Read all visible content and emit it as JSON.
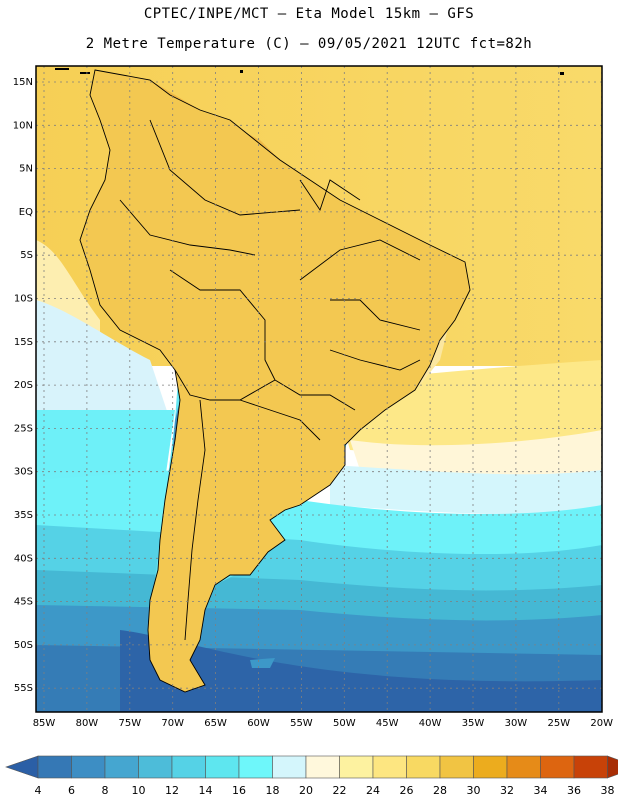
{
  "header": {
    "line1": "CPTEC/INPE/MCT –  Eta Model 15km – GFS",
    "line2": "2 Metre Temperature (C) – 09/05/2021 12UTC fct=82h"
  },
  "map": {
    "lat_labels": [
      "15N",
      "10N",
      "5N",
      "EQ",
      "5S",
      "10S",
      "15S",
      "20S",
      "25S",
      "30S",
      "35S",
      "40S",
      "45S",
      "50S",
      "55S"
    ],
    "lon_labels": [
      "85W",
      "80W",
      "75W",
      "70W",
      "65W",
      "60W",
      "55W",
      "50W",
      "45W",
      "40W",
      "35W",
      "30W",
      "25W",
      "20W"
    ],
    "colorbar": {
      "levels": [
        "4",
        "6",
        "8",
        "10",
        "12",
        "14",
        "16",
        "18",
        "20",
        "22",
        "24",
        "26",
        "28",
        "30",
        "32",
        "34",
        "36",
        "38"
      ],
      "colors": [
        "#2b5fa6",
        "#3578b5",
        "#3d8ec4",
        "#45a6d0",
        "#4dbcd9",
        "#55d2e6",
        "#5ee6ef",
        "#6ef7fa",
        "#d4f6fc",
        "#fff8dc",
        "#fdf2a0",
        "#fde681",
        "#f8d962",
        "#f1c443",
        "#ecac1e",
        "#e68b18",
        "#dd6510",
        "#c84208",
        "#a82d05"
      ]
    }
  }
}
